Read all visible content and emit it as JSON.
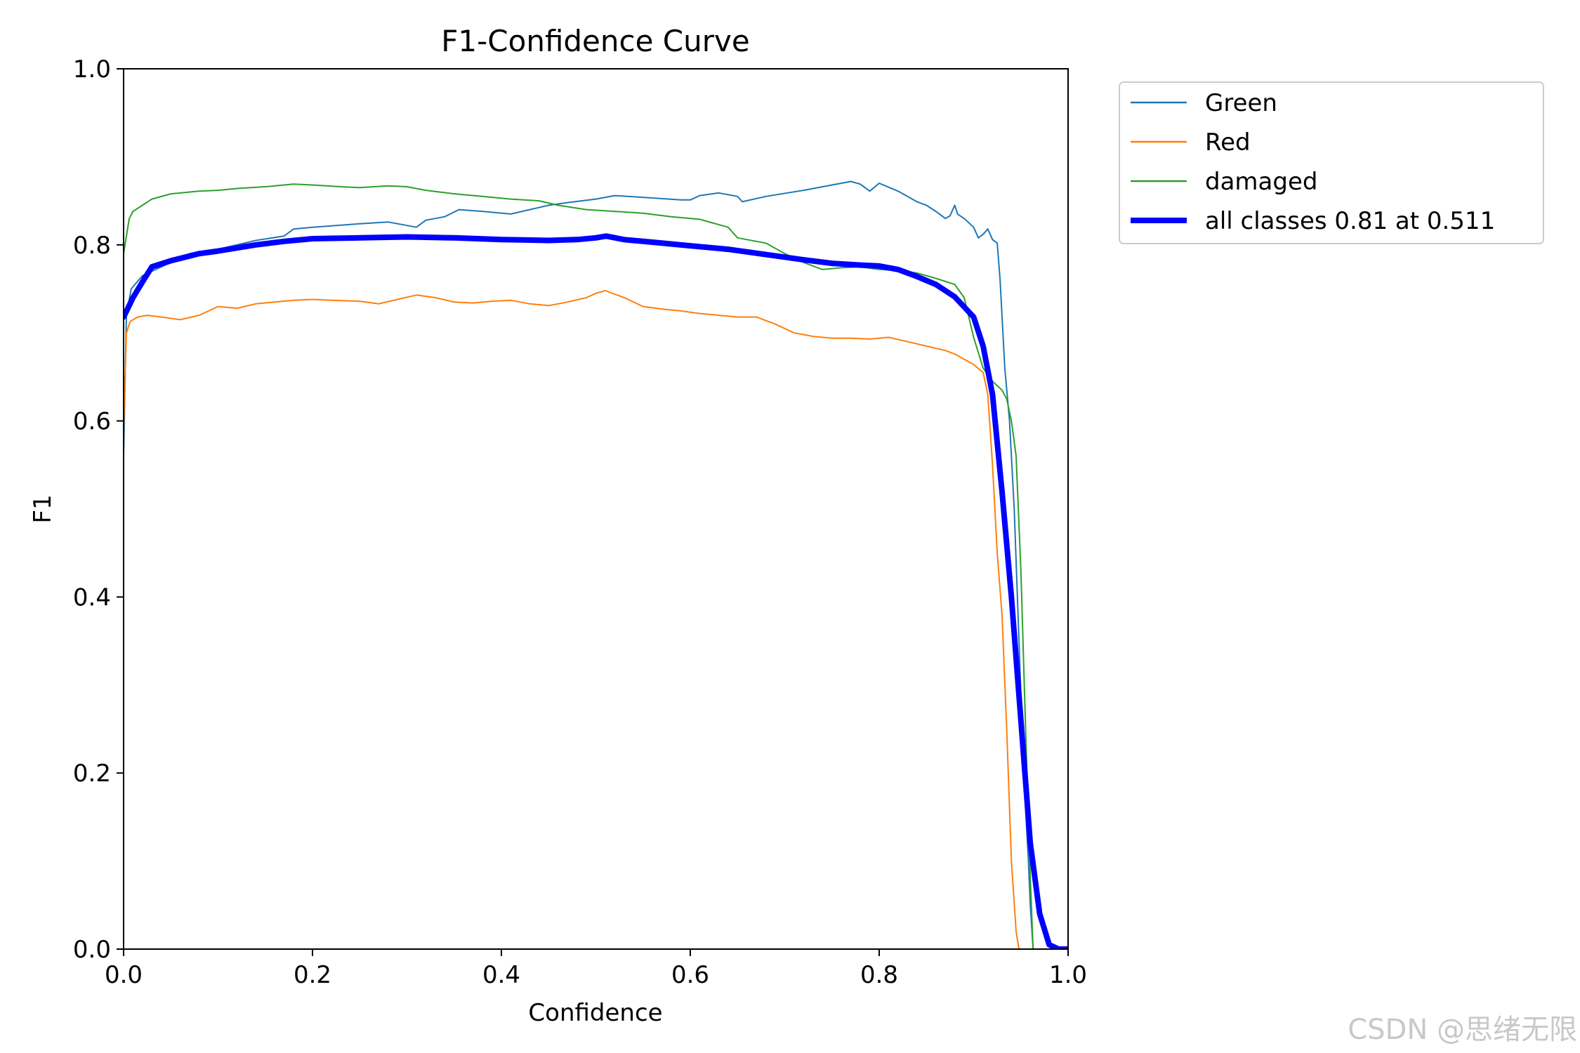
{
  "chart_data": {
    "type": "line",
    "title": "F1-Confidence Curve",
    "xlabel": "Confidence",
    "ylabel": "F1",
    "xlim": [
      0.0,
      1.0
    ],
    "ylim": [
      0.0,
      1.0
    ],
    "xticks": [
      "0.0",
      "0.2",
      "0.4",
      "0.6",
      "0.8",
      "1.0"
    ],
    "yticks": [
      "0.0",
      "0.2",
      "0.4",
      "0.6",
      "0.8",
      "1.0"
    ],
    "legend_position": "outside-top-right",
    "series": [
      {
        "name": "Green",
        "color": "#1f77b4",
        "width": 2,
        "x": [
          0.0,
          0.003,
          0.008,
          0.02,
          0.03,
          0.05,
          0.07,
          0.1,
          0.14,
          0.17,
          0.18,
          0.2,
          0.25,
          0.28,
          0.31,
          0.32,
          0.34,
          0.355,
          0.38,
          0.41,
          0.43,
          0.45,
          0.47,
          0.5,
          0.52,
          0.55,
          0.59,
          0.6,
          0.61,
          0.63,
          0.65,
          0.655,
          0.68,
          0.72,
          0.75,
          0.77,
          0.78,
          0.79,
          0.8,
          0.82,
          0.84,
          0.85,
          0.86,
          0.87,
          0.875,
          0.88,
          0.883,
          0.89,
          0.9,
          0.905,
          0.91,
          0.915,
          0.92,
          0.925,
          0.928,
          0.933,
          0.938,
          0.943,
          0.948,
          0.953,
          0.958,
          0.96,
          0.963,
          1.0
        ],
        "y": [
          0.56,
          0.72,
          0.75,
          0.765,
          0.77,
          0.78,
          0.79,
          0.795,
          0.805,
          0.81,
          0.818,
          0.82,
          0.824,
          0.826,
          0.82,
          0.828,
          0.832,
          0.84,
          0.838,
          0.835,
          0.84,
          0.845,
          0.848,
          0.852,
          0.856,
          0.854,
          0.851,
          0.851,
          0.856,
          0.859,
          0.855,
          0.849,
          0.855,
          0.862,
          0.868,
          0.872,
          0.869,
          0.861,
          0.87,
          0.861,
          0.849,
          0.845,
          0.838,
          0.83,
          0.833,
          0.845,
          0.835,
          0.83,
          0.82,
          0.808,
          0.812,
          0.818,
          0.806,
          0.802,
          0.76,
          0.66,
          0.6,
          0.5,
          0.35,
          0.2,
          0.1,
          0.05,
          0.0,
          0.0
        ]
      },
      {
        "name": "Red",
        "color": "#ff7f0e",
        "width": 2,
        "x": [
          0.0,
          0.003,
          0.007,
          0.015,
          0.025,
          0.04,
          0.06,
          0.08,
          0.1,
          0.12,
          0.14,
          0.16,
          0.18,
          0.2,
          0.22,
          0.25,
          0.27,
          0.29,
          0.31,
          0.33,
          0.35,
          0.37,
          0.39,
          0.41,
          0.43,
          0.45,
          0.47,
          0.49,
          0.5,
          0.51,
          0.52,
          0.53,
          0.55,
          0.57,
          0.59,
          0.61,
          0.63,
          0.65,
          0.67,
          0.69,
          0.71,
          0.73,
          0.75,
          0.77,
          0.79,
          0.81,
          0.83,
          0.85,
          0.87,
          0.88,
          0.89,
          0.9,
          0.91,
          0.915,
          0.92,
          0.925,
          0.93,
          0.935,
          0.94,
          0.945,
          0.948,
          1.0
        ],
        "y": [
          0.59,
          0.7,
          0.713,
          0.718,
          0.72,
          0.718,
          0.715,
          0.72,
          0.73,
          0.728,
          0.733,
          0.735,
          0.737,
          0.738,
          0.737,
          0.736,
          0.733,
          0.738,
          0.743,
          0.74,
          0.735,
          0.734,
          0.736,
          0.737,
          0.733,
          0.731,
          0.735,
          0.74,
          0.745,
          0.748,
          0.744,
          0.74,
          0.73,
          0.727,
          0.725,
          0.722,
          0.72,
          0.718,
          0.718,
          0.71,
          0.7,
          0.696,
          0.694,
          0.694,
          0.693,
          0.695,
          0.69,
          0.685,
          0.68,
          0.676,
          0.67,
          0.664,
          0.655,
          0.63,
          0.55,
          0.45,
          0.38,
          0.25,
          0.1,
          0.02,
          0.0,
          0.0
        ]
      },
      {
        "name": "damaged",
        "color": "#2ca02c",
        "width": 2,
        "x": [
          0.0,
          0.003,
          0.006,
          0.01,
          0.02,
          0.03,
          0.05,
          0.08,
          0.1,
          0.12,
          0.15,
          0.18,
          0.2,
          0.23,
          0.25,
          0.28,
          0.3,
          0.32,
          0.35,
          0.38,
          0.41,
          0.44,
          0.46,
          0.49,
          0.52,
          0.55,
          0.58,
          0.61,
          0.64,
          0.65,
          0.68,
          0.7,
          0.72,
          0.74,
          0.76,
          0.78,
          0.8,
          0.82,
          0.84,
          0.86,
          0.88,
          0.89,
          0.9,
          0.91,
          0.92,
          0.93,
          0.935,
          0.94,
          0.945,
          0.95,
          0.955,
          0.96,
          0.963,
          1.0
        ],
        "y": [
          0.79,
          0.81,
          0.83,
          0.838,
          0.845,
          0.852,
          0.858,
          0.861,
          0.862,
          0.864,
          0.866,
          0.869,
          0.868,
          0.866,
          0.865,
          0.867,
          0.866,
          0.862,
          0.858,
          0.855,
          0.852,
          0.85,
          0.845,
          0.84,
          0.838,
          0.836,
          0.832,
          0.829,
          0.82,
          0.808,
          0.802,
          0.79,
          0.78,
          0.772,
          0.774,
          0.775,
          0.772,
          0.771,
          0.768,
          0.762,
          0.755,
          0.74,
          0.695,
          0.66,
          0.645,
          0.635,
          0.625,
          0.6,
          0.56,
          0.43,
          0.25,
          0.08,
          0.0,
          0.0
        ]
      },
      {
        "name": "all classes 0.81 at 0.511",
        "color": "#0000ff",
        "width": 8,
        "x": [
          0.0,
          0.01,
          0.02,
          0.03,
          0.05,
          0.08,
          0.1,
          0.14,
          0.17,
          0.2,
          0.25,
          0.3,
          0.35,
          0.4,
          0.45,
          0.48,
          0.5,
          0.511,
          0.53,
          0.56,
          0.6,
          0.64,
          0.68,
          0.72,
          0.75,
          0.78,
          0.8,
          0.82,
          0.84,
          0.86,
          0.88,
          0.9,
          0.91,
          0.92,
          0.93,
          0.94,
          0.95,
          0.96,
          0.97,
          0.98,
          0.99,
          1.0
        ],
        "y": [
          0.718,
          0.74,
          0.758,
          0.775,
          0.782,
          0.79,
          0.793,
          0.8,
          0.804,
          0.807,
          0.808,
          0.809,
          0.808,
          0.806,
          0.805,
          0.806,
          0.808,
          0.81,
          0.806,
          0.803,
          0.799,
          0.795,
          0.789,
          0.783,
          0.779,
          0.777,
          0.776,
          0.772,
          0.764,
          0.755,
          0.741,
          0.718,
          0.685,
          0.63,
          0.52,
          0.4,
          0.26,
          0.12,
          0.04,
          0.005,
          0.0,
          0.0
        ]
      }
    ]
  },
  "watermark": "CSDN @思绪无限"
}
